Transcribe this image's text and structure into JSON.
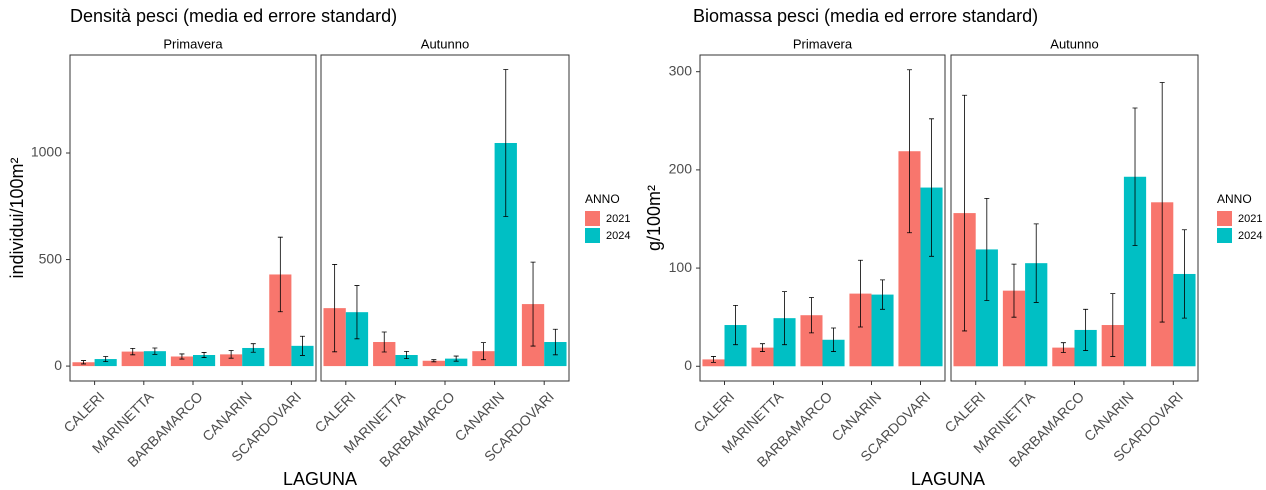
{
  "chart_data": [
    {
      "type": "bar",
      "title": "Densità pesci (media ed errore standard)",
      "x_label": "LAGUNA",
      "y_label": "individui/100m²",
      "legend_title": "ANNO",
      "categories": [
        "CALERI",
        "MARINETTA",
        "BARBAMARCO",
        "CANARIN",
        "SCARDOVARI"
      ],
      "ylim": [
        -70,
        1460
      ],
      "yticks": [
        0,
        500,
        1000
      ],
      "grid": false,
      "facets": [
        {
          "name": "Primavera",
          "series": [
            {
              "name": "2021",
              "color": "#F8766D",
              "values": [
                18,
                68,
                45,
                55,
                430
              ],
              "errors": [
                8,
                15,
                12,
                18,
                175
              ]
            },
            {
              "name": "2024",
              "color": "#00BFC4",
              "values": [
                33,
                70,
                52,
                85,
                95
              ],
              "errors": [
                12,
                15,
                12,
                20,
                45
              ]
            }
          ]
        },
        {
          "name": "Autunno",
          "series": [
            {
              "name": "2021",
              "color": "#F8766D",
              "values": [
                272,
                113,
                25,
                70,
                291
              ],
              "errors": [
                205,
                47,
                5,
                40,
                197
              ]
            },
            {
              "name": "2024",
              "color": "#00BFC4",
              "values": [
                253,
                52,
                35,
                1047,
                113
              ],
              "errors": [
                125,
                17,
                12,
                345,
                60
              ]
            }
          ]
        }
      ]
    },
    {
      "type": "bar",
      "title": "Biomassa pesci (media ed errore standard)",
      "x_label": "LAGUNA",
      "y_label": "g/100m²",
      "legend_title": "ANNO",
      "categories": [
        "CALERI",
        "MARINETTA",
        "BARBAMARCO",
        "CANARIN",
        "SCARDOVARI"
      ],
      "ylim": [
        -15,
        317
      ],
      "yticks": [
        0,
        100,
        200,
        300
      ],
      "grid": false,
      "facets": [
        {
          "name": "Primavera",
          "series": [
            {
              "name": "2021",
              "color": "#F8766D",
              "values": [
                7,
                19,
                52,
                74,
                219
              ],
              "errors": [
                3,
                4,
                18,
                34,
                83
              ]
            },
            {
              "name": "2024",
              "color": "#00BFC4",
              "values": [
                42,
                49,
                27,
                73,
                182
              ],
              "errors": [
                20,
                27,
                12,
                15,
                70
              ]
            }
          ]
        },
        {
          "name": "Autunno",
          "series": [
            {
              "name": "2021",
              "color": "#F8766D",
              "values": [
                156,
                77,
                19,
                42,
                167
              ],
              "errors": [
                120,
                27,
                5,
                32,
                122
              ]
            },
            {
              "name": "2024",
              "color": "#00BFC4",
              "values": [
                119,
                105,
                37,
                193,
                94
              ],
              "errors": [
                52,
                40,
                21,
                70,
                45
              ]
            }
          ]
        }
      ]
    }
  ]
}
